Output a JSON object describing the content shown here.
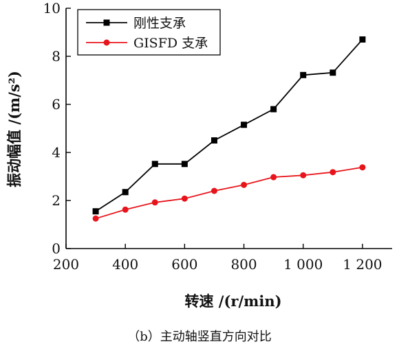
{
  "chart_data": {
    "type": "line",
    "xlabel": "转速 /(r/min)",
    "ylabel": "振动幅值 /(m/s²)",
    "xlim": [
      200,
      1300
    ],
    "ylim": [
      0,
      10
    ],
    "x_ticks": [
      200,
      400,
      600,
      800,
      1000,
      1200
    ],
    "x_tick_labels": [
      "200",
      "400",
      "600",
      "800",
      "1 000",
      "1 200"
    ],
    "y_ticks": [
      0,
      2,
      4,
      6,
      8,
      10
    ],
    "y_tick_labels": [
      "0",
      "2",
      "4",
      "6",
      "8",
      "10"
    ],
    "legend_position": "top-left",
    "x": [
      300,
      400,
      500,
      600,
      700,
      800,
      900,
      1000,
      1100,
      1200
    ],
    "series": [
      {
        "name": "刚性支承",
        "color": "#000000",
        "marker": "square",
        "values": [
          1.55,
          2.35,
          3.52,
          3.52,
          4.5,
          5.15,
          5.8,
          7.22,
          7.32,
          8.7
        ]
      },
      {
        "name": "GISFD 支承",
        "color": "#e8141b",
        "marker": "circle",
        "values": [
          1.25,
          1.62,
          1.92,
          2.08,
          2.4,
          2.65,
          2.97,
          3.05,
          3.18,
          3.38
        ]
      }
    ]
  },
  "caption": "（b）主动轴竖直方向对比"
}
